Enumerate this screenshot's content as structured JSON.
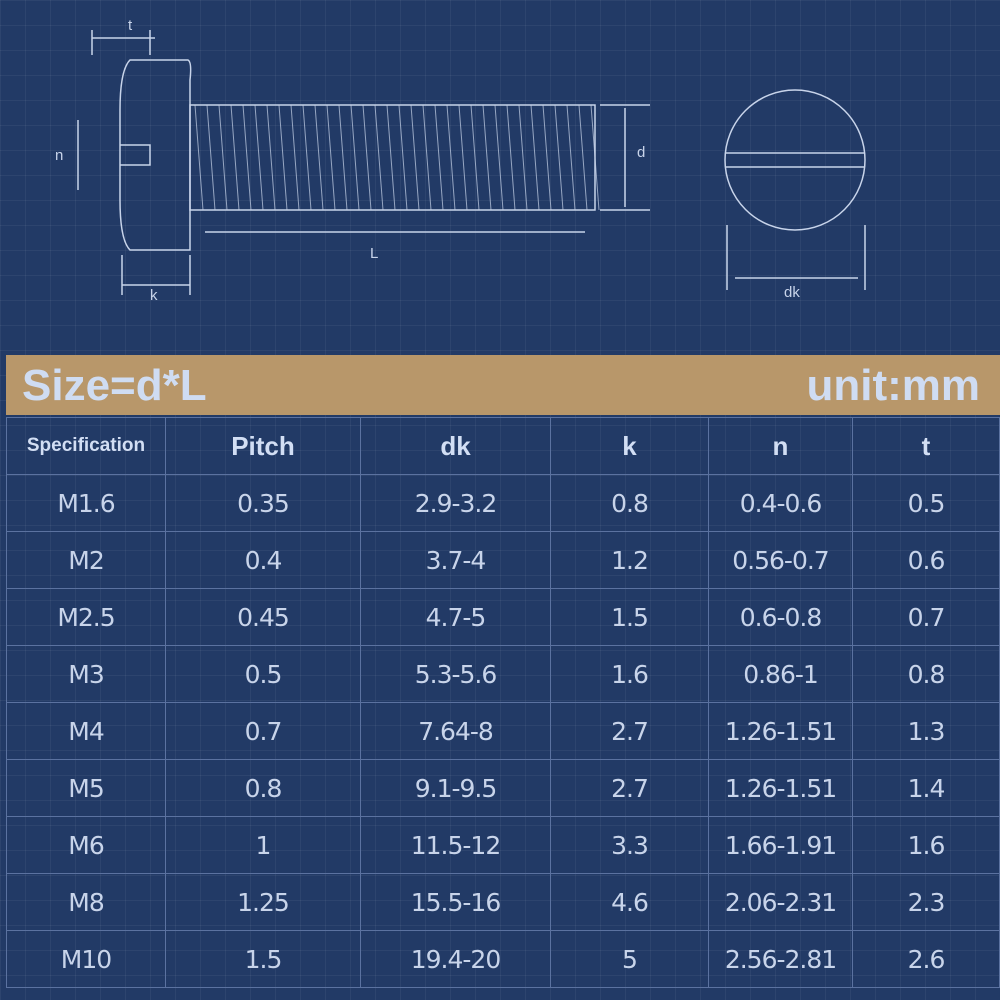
{
  "drawing": {
    "labels": {
      "t": "t",
      "n": "n",
      "k": "k",
      "L": "L",
      "d": "d",
      "dk": "dk"
    }
  },
  "banner": {
    "left": "Size=d*L",
    "right": "unit:mm"
  },
  "colors": {
    "background": "#223a66",
    "banner": "#b8976a",
    "text": "#c8d4ea"
  },
  "table": {
    "headers": [
      "Specification",
      "Pitch",
      "dk",
      "k",
      "n",
      "t"
    ],
    "rows": [
      [
        "M1.6",
        "0.35",
        "2.9-3.2",
        "0.8",
        "0.4-0.6",
        "0.5"
      ],
      [
        "M2",
        "0.4",
        "3.7-4",
        "1.2",
        "0.56-0.7",
        "0.6"
      ],
      [
        "M2.5",
        "0.45",
        "4.7-5",
        "1.5",
        "0.6-0.8",
        "0.7"
      ],
      [
        "M3",
        "0.5",
        "5.3-5.6",
        "1.6",
        "0.86-1",
        "0.8"
      ],
      [
        "M4",
        "0.7",
        "7.64-8",
        "2.7",
        "1.26-1.51",
        "1.3"
      ],
      [
        "M5",
        "0.8",
        "9.1-9.5",
        "2.7",
        "1.26-1.51",
        "1.4"
      ],
      [
        "M6",
        "1",
        "11.5-12",
        "3.3",
        "1.66-1.91",
        "1.6"
      ],
      [
        "M8",
        "1.25",
        "15.5-16",
        "4.6",
        "2.06-2.31",
        "2.3"
      ],
      [
        "M10",
        "1.5",
        "19.4-20",
        "5",
        "2.56-2.81",
        "2.6"
      ]
    ]
  }
}
